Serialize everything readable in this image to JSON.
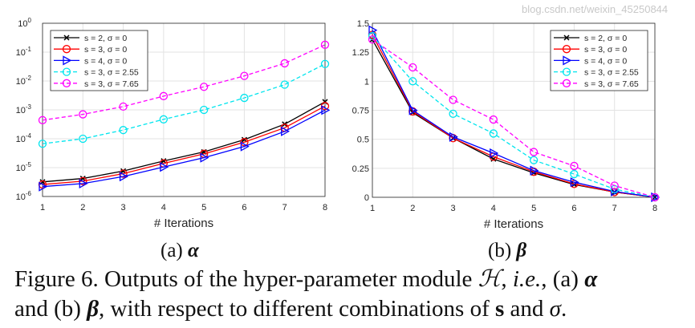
{
  "chart_data": [
    {
      "type": "line",
      "xlabel": "# Iterations",
      "ylabel": "",
      "yscale": "log",
      "xlim": [
        1,
        8
      ],
      "ylim": [
        1e-06,
        1
      ],
      "x": [
        1,
        2,
        3,
        4,
        5,
        6,
        7,
        8
      ],
      "xticks": [
        "1",
        "2",
        "3",
        "4",
        "5",
        "6",
        "7",
        "8"
      ],
      "yticks": [
        {
          "base": "10",
          "exp": "0"
        },
        {
          "base": "10",
          "exp": "-1"
        },
        {
          "base": "10",
          "exp": "-2"
        },
        {
          "base": "10",
          "exp": "-3"
        },
        {
          "base": "10",
          "exp": "-4"
        },
        {
          "base": "10",
          "exp": "-5"
        },
        {
          "base": "10",
          "exp": "-6"
        }
      ],
      "grid": true,
      "legend_position": "top-left",
      "series": [
        {
          "name": "s = 2, σ = 0",
          "color": "#000000",
          "marker": "x",
          "dash": false,
          "values": [
            3.2e-06,
            4.2e-06,
            7.6e-06,
            1.7e-05,
            3.5e-05,
            9.3e-05,
            0.00032,
            0.0019
          ]
        },
        {
          "name": "s = 3, σ = 0",
          "color": "#ff0000",
          "marker": "circle",
          "dash": false,
          "values": [
            2.6e-06,
            3.4e-06,
            6.2e-06,
            1.4e-05,
            3e-05,
            7.6e-05,
            0.00024,
            0.00135
          ]
        },
        {
          "name": "s = 4, σ = 0",
          "color": "#0000ff",
          "marker": "triangle-right",
          "dash": false,
          "values": [
            2.2e-06,
            2.8e-06,
            4.9e-06,
            1.05e-05,
            2.2e-05,
            5.4e-05,
            0.00018,
            0.00098
          ]
        },
        {
          "name": "s = 3, σ = 2.55",
          "color": "#00e5ee",
          "marker": "circle",
          "dash": true,
          "values": [
            6.7e-05,
            0.0001,
            0.0002,
            0.00047,
            0.001,
            0.0026,
            0.0075,
            0.039
          ]
        },
        {
          "name": "s = 3, σ = 7.65",
          "color": "#ff00ff",
          "marker": "circle",
          "dash": true,
          "values": [
            0.00044,
            0.0007,
            0.0013,
            0.003,
            0.0063,
            0.015,
            0.041,
            0.18
          ]
        }
      ]
    },
    {
      "type": "line",
      "xlabel": "# Iterations",
      "ylabel": "",
      "yscale": "linear",
      "xlim": [
        1,
        8
      ],
      "ylim": [
        0,
        1.5
      ],
      "x": [
        1,
        2,
        3,
        4,
        5,
        6,
        7,
        8
      ],
      "xticks": [
        "1",
        "2",
        "3",
        "4",
        "5",
        "6",
        "7",
        "8"
      ],
      "yticks": [
        "0",
        "0.25",
        "0.5",
        "0.75",
        "1",
        "1.25",
        "1.5"
      ],
      "grid": true,
      "legend_position": "top-right",
      "series": [
        {
          "name": "s = 2, σ = 0",
          "color": "#000000",
          "marker": "x",
          "dash": false,
          "values": [
            1.36,
            0.73,
            0.51,
            0.33,
            0.21,
            0.11,
            0.045,
            0
          ]
        },
        {
          "name": "s = 3, σ = 0",
          "color": "#ff0000",
          "marker": "circle",
          "dash": false,
          "values": [
            1.4,
            0.74,
            0.51,
            0.35,
            0.22,
            0.115,
            0.045,
            0
          ]
        },
        {
          "name": "s = 4, σ = 0",
          "color": "#0000ff",
          "marker": "triangle-right",
          "dash": false,
          "values": [
            1.44,
            0.75,
            0.52,
            0.38,
            0.23,
            0.13,
            0.05,
            0
          ]
        },
        {
          "name": "s = 3, σ = 2.55",
          "color": "#00e5ee",
          "marker": "circle",
          "dash": true,
          "values": [
            1.39,
            1.0,
            0.72,
            0.55,
            0.32,
            0.2,
            0.07,
            0
          ]
        },
        {
          "name": "s = 3, σ = 7.65",
          "color": "#ff00ff",
          "marker": "circle",
          "dash": true,
          "values": [
            1.36,
            1.12,
            0.84,
            0.67,
            0.39,
            0.27,
            0.1,
            0
          ]
        }
      ]
    }
  ],
  "subcaptions": {
    "a_prefix": "(a) ",
    "a_symbol": "α",
    "b_prefix": "(b) ",
    "b_symbol": "β"
  },
  "caption": {
    "l1_a": "Figure 6. Outputs of the hyper-parameter module ",
    "l1_H": "ℋ",
    "l1_b": ", ",
    "l1_ie": "i.e.",
    "l1_c": ", (a) ",
    "l1_alpha": "α",
    "l2_a": "and (b) ",
    "l2_beta": "β",
    "l2_b": ", with respect to different combinations of ",
    "l2_s": "s",
    "l2_c": " and ",
    "l2_sigma": "σ",
    "l2_d": "."
  },
  "watermark": "blog.csdn.net/weixin_45250844"
}
